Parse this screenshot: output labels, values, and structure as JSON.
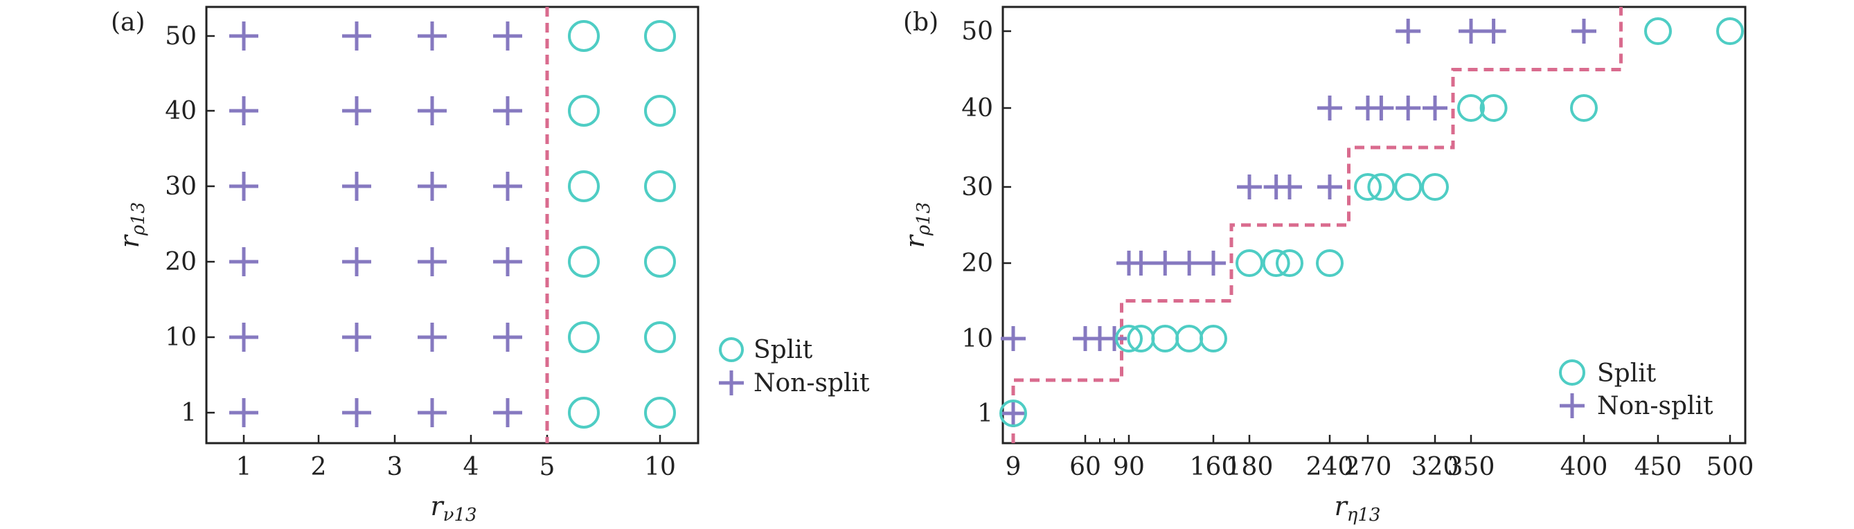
{
  "colors": {
    "split": "#4ecdc4",
    "non_split": "#8679c0",
    "boundary": "#d96b8e",
    "axis": "#222222"
  },
  "chart_data": [
    {
      "panel": "(a)",
      "type": "scatter",
      "xlabel": {
        "main": "r",
        "sub": "ν13"
      },
      "ylabel": {
        "main": "r",
        "sub": "ρ13"
      },
      "x_ticks": [
        "1",
        "2",
        "3",
        "4",
        "5",
        "10"
      ],
      "y_ticks": [
        "1",
        "10",
        "20",
        "30",
        "40",
        "50"
      ],
      "x_axis_scale": "category",
      "legend": {
        "placement": "outside-right",
        "entries": [
          "Split",
          "Non-split"
        ]
      },
      "series": [
        {
          "name": "Non-split",
          "marker": "plus",
          "points": [
            {
              "x": "1",
              "y": "1"
            },
            {
              "x": "1",
              "y": "10"
            },
            {
              "x": "1",
              "y": "20"
            },
            {
              "x": "1",
              "y": "30"
            },
            {
              "x": "1",
              "y": "40"
            },
            {
              "x": "1",
              "y": "50"
            },
            {
              "x": "2.5",
              "y": "1"
            },
            {
              "x": "2.5",
              "y": "10"
            },
            {
              "x": "2.5",
              "y": "20"
            },
            {
              "x": "2.5",
              "y": "30"
            },
            {
              "x": "2.5",
              "y": "40"
            },
            {
              "x": "2.5",
              "y": "50"
            },
            {
              "x": "3.5",
              "y": "1"
            },
            {
              "x": "3.5",
              "y": "10"
            },
            {
              "x": "3.5",
              "y": "20"
            },
            {
              "x": "3.5",
              "y": "30"
            },
            {
              "x": "3.5",
              "y": "40"
            },
            {
              "x": "3.5",
              "y": "50"
            },
            {
              "x": "4.5",
              "y": "1"
            },
            {
              "x": "4.5",
              "y": "10"
            },
            {
              "x": "4.5",
              "y": "20"
            },
            {
              "x": "4.5",
              "y": "30"
            },
            {
              "x": "4.5",
              "y": "40"
            },
            {
              "x": "4.5",
              "y": "50"
            }
          ]
        },
        {
          "name": "Split",
          "marker": "circle",
          "points": [
            {
              "x": "5.5",
              "y": "1"
            },
            {
              "x": "5.5",
              "y": "10"
            },
            {
              "x": "5.5",
              "y": "20"
            },
            {
              "x": "5.5",
              "y": "30"
            },
            {
              "x": "5.5",
              "y": "40"
            },
            {
              "x": "5.5",
              "y": "50"
            },
            {
              "x": "10",
              "y": "1"
            },
            {
              "x": "10",
              "y": "10"
            },
            {
              "x": "10",
              "y": "20"
            },
            {
              "x": "10",
              "y": "30"
            },
            {
              "x": "10",
              "y": "40"
            },
            {
              "x": "10",
              "y": "50"
            }
          ]
        }
      ],
      "boundary": {
        "style": "dashed",
        "vertical_at_x": 5
      }
    },
    {
      "panel": "(b)",
      "type": "scatter",
      "xlabel": {
        "main": "r",
        "sub": "η13"
      },
      "ylabel": {
        "main": "r",
        "sub": "ρ13"
      },
      "x_ticks": [
        9,
        60,
        90,
        160,
        180,
        240,
        270,
        320,
        350,
        400,
        450,
        500
      ],
      "x_minor_ticks": [
        70,
        80
      ],
      "y_ticks": [
        "1",
        "10",
        "20",
        "30",
        "40",
        "50"
      ],
      "legend": {
        "placement": "bottom-right",
        "entries": [
          "Split",
          "Non-split"
        ]
      },
      "series": [
        {
          "name": "Non-split",
          "marker": "plus",
          "points": [
            {
              "x": 9,
              "y": 1
            },
            {
              "x": 9,
              "y": 10
            },
            {
              "x": 60,
              "y": 10
            },
            {
              "x": 70,
              "y": 10
            },
            {
              "x": 80,
              "y": 10
            },
            {
              "x": 90,
              "y": 20
            },
            {
              "x": 100,
              "y": 20
            },
            {
              "x": 120,
              "y": 20
            },
            {
              "x": 140,
              "y": 20
            },
            {
              "x": 160,
              "y": 20
            },
            {
              "x": 180,
              "y": 30
            },
            {
              "x": 200,
              "y": 30
            },
            {
              "x": 210,
              "y": 30
            },
            {
              "x": 240,
              "y": 30
            },
            {
              "x": 240,
              "y": 40
            },
            {
              "x": 270,
              "y": 40
            },
            {
              "x": 280,
              "y": 40
            },
            {
              "x": 300,
              "y": 40
            },
            {
              "x": 320,
              "y": 40
            },
            {
              "x": 300,
              "y": 50
            },
            {
              "x": 350,
              "y": 50
            },
            {
              "x": 360,
              "y": 50
            },
            {
              "x": 400,
              "y": 50
            }
          ]
        },
        {
          "name": "Split",
          "marker": "circle",
          "points": [
            {
              "x": 9,
              "y": 1
            },
            {
              "x": 90,
              "y": 10
            },
            {
              "x": 100,
              "y": 10
            },
            {
              "x": 120,
              "y": 10
            },
            {
              "x": 140,
              "y": 10
            },
            {
              "x": 160,
              "y": 10
            },
            {
              "x": 180,
              "y": 20
            },
            {
              "x": 200,
              "y": 20
            },
            {
              "x": 210,
              "y": 20
            },
            {
              "x": 240,
              "y": 20
            },
            {
              "x": 270,
              "y": 30
            },
            {
              "x": 280,
              "y": 30
            },
            {
              "x": 300,
              "y": 30
            },
            {
              "x": 320,
              "y": 30
            },
            {
              "x": 350,
              "y": 40
            },
            {
              "x": 360,
              "y": 40
            },
            {
              "x": 400,
              "y": 40
            },
            {
              "x": 450,
              "y": 50
            },
            {
              "x": 500,
              "y": 50
            }
          ]
        }
      ],
      "boundary": {
        "style": "dashed-step",
        "points": [
          [
            9,
            0
          ],
          [
            9,
            5
          ],
          [
            85,
            5
          ],
          [
            85,
            15
          ],
          [
            170,
            15
          ],
          [
            170,
            25
          ],
          [
            255,
            25
          ],
          [
            255,
            35
          ],
          [
            335,
            35
          ],
          [
            335,
            45
          ],
          [
            425,
            45
          ],
          [
            425,
            55
          ]
        ]
      }
    }
  ]
}
